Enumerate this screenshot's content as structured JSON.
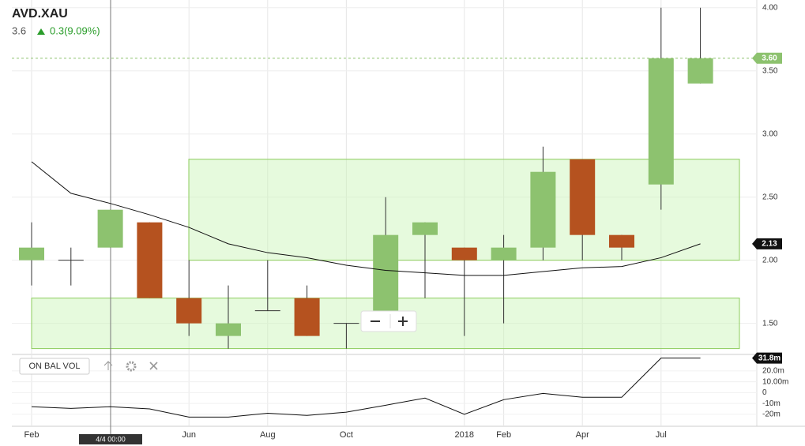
{
  "chart_data": [
    {
      "type": "candlestick",
      "title": "AVD.XAU",
      "last": "3.6",
      "change": "0.3(9.09%)",
      "categories": [
        "Feb",
        null,
        null,
        null,
        "Jun",
        null,
        "Aug",
        null,
        "Oct",
        null,
        null,
        "2018",
        "Feb",
        null,
        "Apr",
        null,
        "Jul",
        null
      ],
      "open": [
        2.0,
        2.0,
        2.1,
        2.3,
        1.7,
        1.4,
        1.6,
        1.7,
        1.5,
        1.6,
        2.2,
        2.1,
        2.0,
        2.1,
        2.8,
        2.2,
        2.6,
        3.4
      ],
      "high": [
        2.3,
        2.1,
        2.4,
        2.3,
        2.0,
        1.8,
        2.0,
        1.8,
        1.5,
        2.5,
        2.3,
        2.1,
        2.2,
        2.9,
        2.8,
        2.2,
        4.0,
        4.0
      ],
      "low": [
        1.8,
        1.8,
        2.1,
        1.7,
        1.4,
        1.3,
        1.6,
        1.4,
        1.3,
        1.6,
        1.7,
        1.4,
        1.5,
        2.0,
        2.0,
        2.0,
        2.4,
        3.4
      ],
      "close": [
        2.1,
        2.0,
        2.4,
        1.7,
        1.5,
        1.5,
        1.6,
        1.4,
        1.5,
        2.2,
        2.3,
        2.0,
        2.1,
        2.7,
        2.2,
        2.1,
        3.6,
        3.6
      ],
      "up_color": "#8dc26f",
      "down_color": "#b5521f",
      "moving_average": {
        "color": "#111111",
        "values": [
          2.78,
          2.53,
          2.45,
          2.36,
          2.26,
          2.13,
          2.06,
          2.02,
          1.96,
          1.92,
          1.9,
          1.88,
          1.88,
          1.91,
          1.94,
          1.95,
          2.02,
          2.13
        ]
      },
      "zones": [
        {
          "low": 2.0,
          "high": 2.8
        },
        {
          "low": 1.3,
          "high": 1.7
        }
      ],
      "ylim": [
        1.26,
        4.03
      ],
      "yticks": [
        {
          "value": 1.5,
          "label": "1.50"
        },
        {
          "value": 2.0,
          "label": "2.00"
        },
        {
          "value": 2.5,
          "label": "2.50"
        },
        {
          "value": 3.0,
          "label": "3.00"
        },
        {
          "value": 3.5,
          "label": "3.50"
        },
        {
          "value": 4.0,
          "label": "4.00"
        }
      ],
      "last_price_label": {
        "value": 3.6,
        "label": "3.60"
      },
      "average_label": {
        "value": 2.13,
        "label": "2.13"
      },
      "crosshair_label": "4/4 00:00",
      "grid": true
    },
    {
      "type": "line",
      "title": "ON BAL VOL",
      "color": "#111111",
      "values": [
        -13,
        -14.5,
        -13,
        -15,
        -22.5,
        -22.5,
        -19,
        -21,
        -18,
        -11.6,
        -5,
        -20,
        -6.5,
        -0.7,
        -4.3,
        -4.3,
        31.8,
        31.8
      ],
      "ylim": [
        -31,
        33
      ],
      "yticks": [
        {
          "value": -20,
          "label": "-20m"
        },
        {
          "value": -10,
          "label": "-10m"
        },
        0,
        {
          "value": 10,
          "label": "10.00m"
        },
        {
          "value": 20,
          "label": "20.0m"
        }
      ],
      "last_label": {
        "value": 31.8,
        "label": "31.8m"
      }
    }
  ]
}
